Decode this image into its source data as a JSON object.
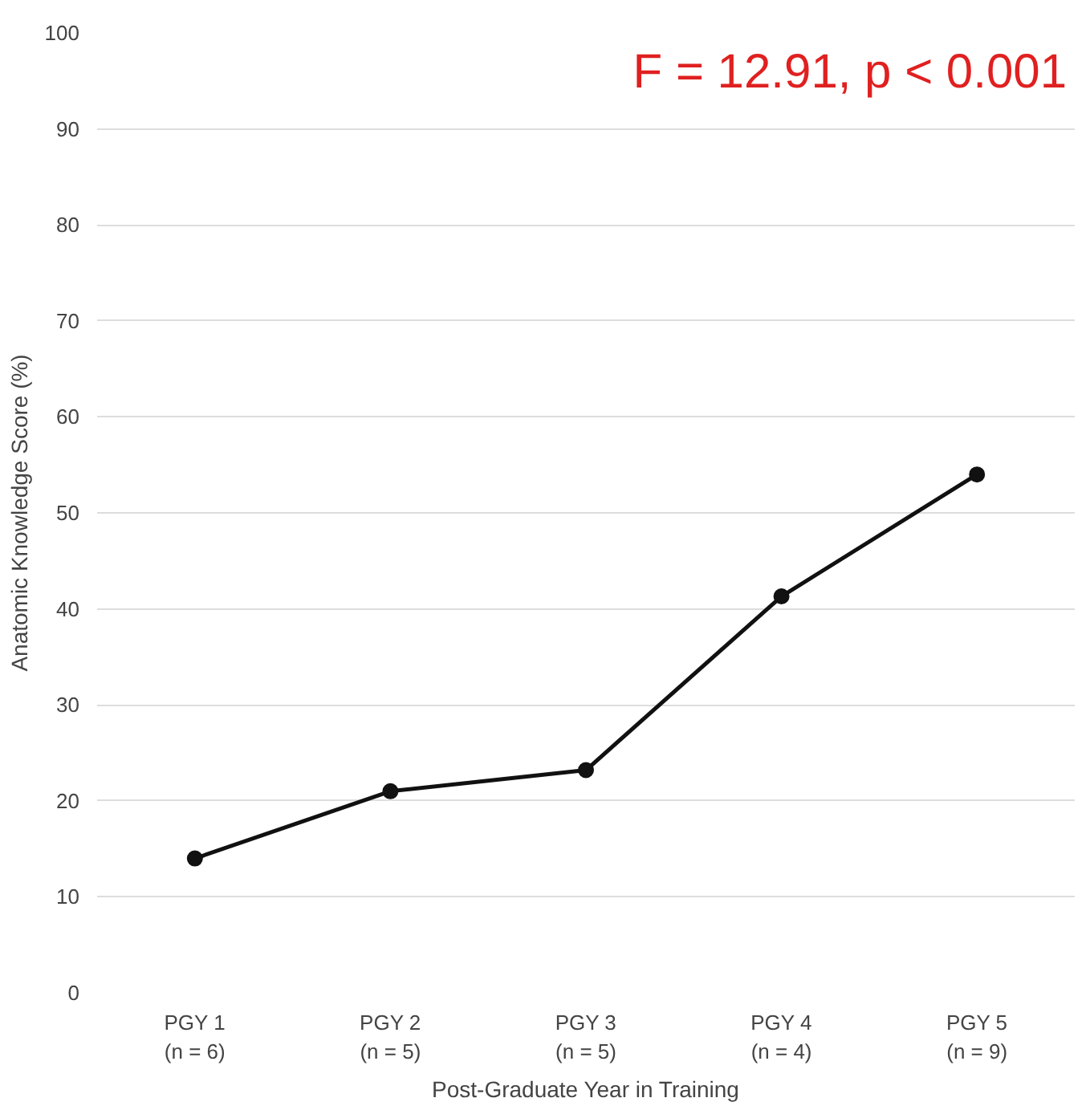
{
  "chart_data": {
    "type": "line",
    "xlabel": "Post-Graduate Year in Training",
    "ylabel": "Anatomic Knowledge Score (%)",
    "categories": [
      "PGY 1\n(n = 6)",
      "PGY 2\n(n = 5)",
      "PGY 3\n(n = 5)",
      "PGY 4\n(n = 4)",
      "PGY 5\n(n = 9)"
    ],
    "series": [
      {
        "color": "#111111",
        "values": [
          14,
          21,
          23.2,
          41.3,
          54
        ]
      }
    ],
    "ylim": [
      0,
      100
    ],
    "yticks": [
      0,
      10,
      20,
      30,
      40,
      50,
      60,
      70,
      80,
      90,
      100
    ],
    "grid": "y",
    "marker": "circle",
    "line_style": "solid",
    "annotations": [
      "F = 12.91, p < 0.001"
    ]
  }
}
